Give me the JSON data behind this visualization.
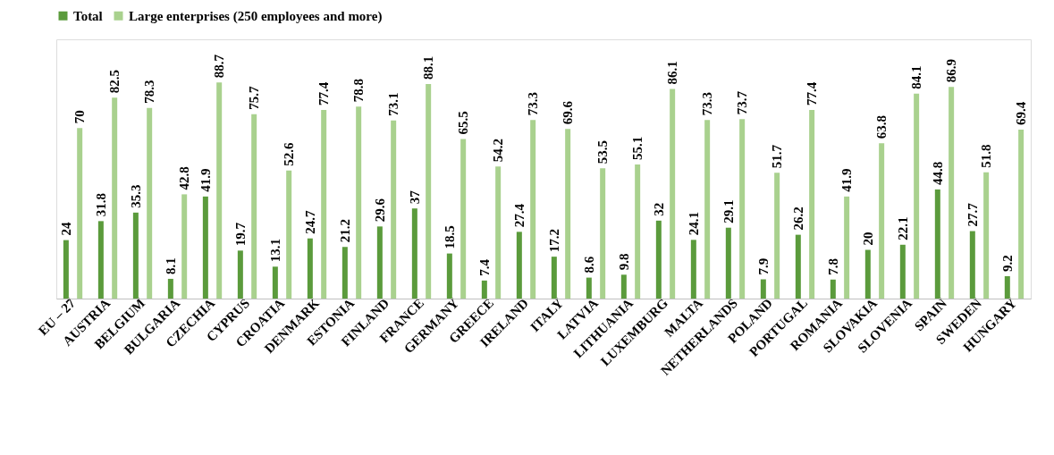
{
  "chart_data": {
    "type": "bar",
    "categories": [
      "EU – 27",
      "AUSTRIA",
      "BELGIUM",
      "BULGARIA",
      "CZECHIA",
      "CYPRUS",
      "CROATIA",
      "DENMARK",
      "ESTONIA",
      "FINLAND",
      "FRANCE",
      "GERMANY",
      "GREECE",
      "IRELAND",
      "ITALY",
      "LATVIA",
      "LITHUANIA",
      "LUXEMBURG",
      "MALTA",
      "NETHERLANDS",
      "POLAND",
      "PORTUGAL",
      "ROMANIA",
      "SLOVAKIA",
      "SLOVENIA",
      "SPAIN",
      "SWEDEN",
      "HUNGARY"
    ],
    "series": [
      {
        "name": "Total",
        "color": "#5b9b3c",
        "values": [
          24,
          31.8,
          35.3,
          8.1,
          41.9,
          19.7,
          13.1,
          24.7,
          21.2,
          29.6,
          37,
          18.5,
          7.4,
          27.4,
          17.2,
          8.6,
          9.8,
          32,
          24.1,
          29.1,
          7.9,
          26.2,
          7.8,
          20,
          22.1,
          44.8,
          27.7,
          9.2
        ]
      },
      {
        "name": "Large enterprises (250 employees and more)",
        "color": "#a9d18e",
        "values": [
          70,
          82.5,
          78.3,
          42.8,
          88.7,
          75.7,
          52.6,
          77.4,
          78.8,
          73.1,
          88.1,
          65.5,
          54.2,
          73.3,
          69.6,
          53.5,
          55.1,
          86.1,
          73.3,
          73.7,
          51.7,
          77.4,
          41.9,
          63.8,
          84.1,
          86.9,
          51.8,
          69.4
        ]
      }
    ],
    "data_labels": true,
    "legend": "top",
    "grid": false
  }
}
